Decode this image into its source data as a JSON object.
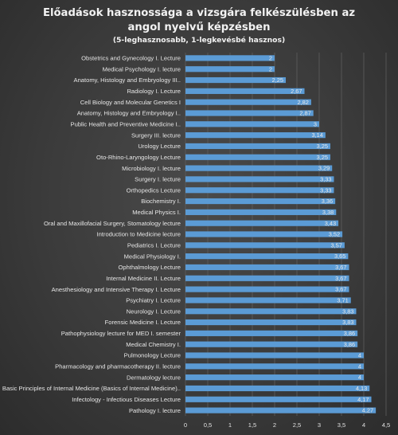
{
  "chart_data": {
    "type": "bar",
    "orientation": "horizontal",
    "title": "Előadások hasznossága a vizsgára felkészülésben az angol nyelvű képzésben",
    "title_lines": [
      "Előadások hasznossága a vizsgára felkészülésben az",
      "angol nyelvű képzésben"
    ],
    "subtitle": "(5-leghasznosabb, 1-legkevésbé hasznos)",
    "xlabel": "",
    "ylabel": "",
    "xlim": [
      0,
      4.5
    ],
    "x_ticks": [
      0,
      0.5,
      1,
      1.5,
      2,
      2.5,
      3,
      3.5,
      4,
      4.5
    ],
    "x_tick_labels": [
      "0",
      "0,5",
      "1",
      "1,5",
      "2",
      "2,5",
      "3",
      "3,5",
      "4",
      "4,5"
    ],
    "grid": true,
    "legend": "none",
    "bar_color": "#5b9bd5",
    "categories": [
      "Obstetrics and Gynecology I. Lecture",
      "Medical Psychology I. lecture",
      "Anatomy, Histology and Embryology III..",
      "Radiology I. Lecture",
      "Cell Biology and Molecular Genetics I",
      "Anatomy, Histology and Embryology I..",
      "Public Health and Preventive Medicine I..",
      "Surgery III. lecture",
      "Urology Lecture",
      "Oto-Rhino-Laryngology Lecture",
      "Microbiology I. lecture",
      "Surgery I. lecture",
      "Orthopedics Lecture",
      "Biochemistry I.",
      "Medical Physics I.",
      "Oral and Maxillofacial Surgery, Stomatology lecture",
      "Introduction to Medicine lecture",
      "Pediatrics I. Lecture",
      "Medical Physiology I.",
      "Ophthalmology Lecture",
      "Internal Medicine II. Lecture",
      "Anesthesiology and Intensive Therapy I. Lecture",
      "Psychiatry I. Lecture",
      "Neurology I. Lecture",
      "Forensic Medicine I. Lecture",
      "Pathophysiology lecture for MED I. semester",
      "Medical Chemistry I.",
      "Pulmonology Lecture",
      "Pharmacology and pharmacotherapy II. lecture",
      "Dermatology lecture",
      "Basic Principles of Internal Medicine (Basics of Internal Medicine)..",
      "Infectology - Infectious Diseases Lecture",
      "Pathology I. lecture"
    ],
    "values": [
      2,
      2,
      2.25,
      2.67,
      2.82,
      2.87,
      3,
      3.14,
      3.25,
      3.25,
      3.29,
      3.33,
      3.33,
      3.36,
      3.38,
      3.43,
      3.52,
      3.57,
      3.65,
      3.67,
      3.67,
      3.67,
      3.71,
      3.83,
      3.83,
      3.86,
      3.86,
      4,
      4,
      4,
      4.13,
      4.17,
      4.27
    ],
    "value_labels": [
      "2",
      "2",
      "2,25",
      "2,67",
      "2,82",
      "2,87",
      "3",
      "3,14",
      "3,25",
      "3,25",
      "3,29",
      "3,33",
      "3,33",
      "3,36",
      "3,38",
      "3,43",
      "3,52",
      "3,57",
      "3,65",
      "3,67",
      "3,67",
      "3,67",
      "3,71",
      "3,83",
      "3,83",
      "3,86",
      "3,86",
      "4",
      "4",
      "4",
      "4,13",
      "4,17",
      "4,27"
    ]
  }
}
